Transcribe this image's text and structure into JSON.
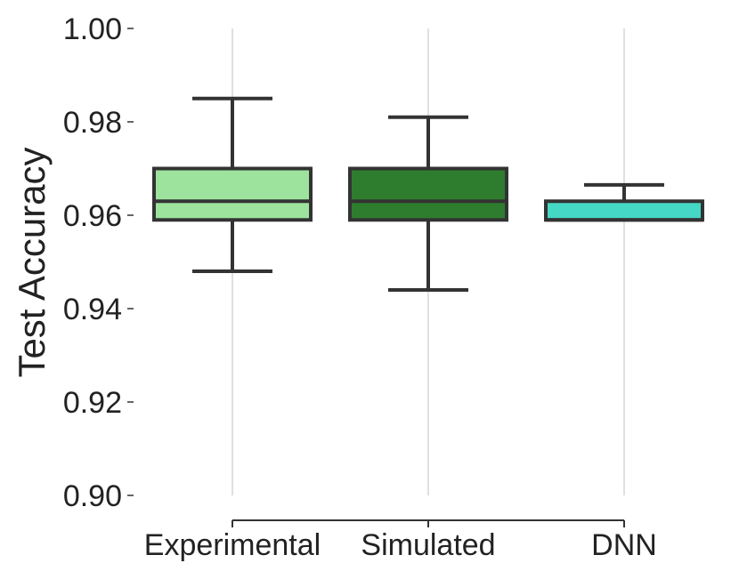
{
  "chart_data": {
    "type": "box",
    "title": "",
    "xlabel": "",
    "ylabel": "Test Accuracy",
    "ylim": [
      0.9,
      1.0
    ],
    "yticks": [
      0.9,
      0.92,
      0.94,
      0.96,
      0.98,
      1.0
    ],
    "ytick_labels": [
      "0.90",
      "0.92",
      "0.94",
      "0.96",
      "0.98",
      "1.00"
    ],
    "grid": "vertical",
    "categories": [
      "Experimental",
      "Simulated",
      "DNN"
    ],
    "boxes": [
      {
        "category": "Experimental",
        "whisker_low": 0.948,
        "q1": 0.959,
        "median": 0.963,
        "q3": 0.97,
        "whisker_high": 0.985,
        "color": "#9de39d"
      },
      {
        "category": "Simulated",
        "whisker_low": 0.944,
        "q1": 0.959,
        "median": 0.963,
        "q3": 0.97,
        "whisker_high": 0.981,
        "color": "#2e7d2e"
      },
      {
        "category": "DNN",
        "whisker_low": 0.959,
        "q1": 0.959,
        "median": 0.959,
        "q3": 0.963,
        "whisker_high": 0.9665,
        "color": "#45d8c4"
      }
    ]
  },
  "colors": {
    "edge": "#333333",
    "grid": "#cccccc",
    "text": "#222222"
  }
}
